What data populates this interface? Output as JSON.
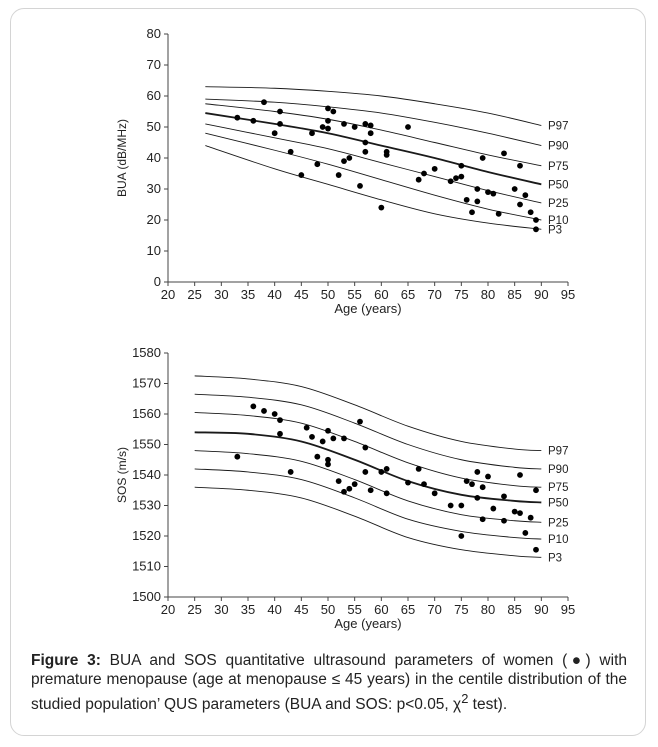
{
  "caption": {
    "label": "Figure 3:",
    "text_a": " BUA and SOS quantitative ultrasound parameters of women (●) with premature menopause (age at menopause ≤ 45 years) in the centile distribution of the studied population’ QUS parameters (BUA and SOS: p<0.05, χ",
    "sup": "2",
    "text_b": " test)."
  },
  "chart_data": [
    {
      "type": "scatter",
      "title": "",
      "xlabel": "Age (years)",
      "ylabel": "BUA (dB/MHz)",
      "xlim": [
        20,
        95
      ],
      "ylim": [
        0,
        80
      ],
      "x_ticks": [
        20,
        25,
        30,
        35,
        40,
        45,
        50,
        55,
        60,
        65,
        70,
        75,
        80,
        85,
        90,
        95
      ],
      "y_ticks": [
        0,
        10,
        20,
        30,
        40,
        50,
        60,
        70,
        80
      ],
      "grid": false,
      "centiles": [
        {
          "name": "P97",
          "points": [
            [
              27,
              63
            ],
            [
              40,
              62.5
            ],
            [
              50,
              61.5
            ],
            [
              60,
              60
            ],
            [
              70,
              57.5
            ],
            [
              80,
              54.5
            ],
            [
              90,
              50.5
            ]
          ]
        },
        {
          "name": "P90",
          "points": [
            [
              27,
              59
            ],
            [
              40,
              58
            ],
            [
              50,
              56.5
            ],
            [
              60,
              54.5
            ],
            [
              70,
              51.5
            ],
            [
              80,
              48
            ],
            [
              90,
              44
            ]
          ]
        },
        {
          "name": "P75",
          "points": [
            [
              27,
              57.5
            ],
            [
              40,
              55
            ],
            [
              50,
              52.5
            ],
            [
              60,
              49
            ],
            [
              70,
              45
            ],
            [
              80,
              41
            ],
            [
              90,
              37.5
            ]
          ]
        },
        {
          "name": "P50",
          "points": [
            [
              27,
              54.5
            ],
            [
              40,
              51
            ],
            [
              50,
              48
            ],
            [
              60,
              44
            ],
            [
              70,
              40
            ],
            [
              80,
              35.5
            ],
            [
              90,
              31.5
            ]
          ]
        },
        {
          "name": "P25",
          "points": [
            [
              27,
              51
            ],
            [
              40,
              46.5
            ],
            [
              50,
              43
            ],
            [
              60,
              38.5
            ],
            [
              70,
              34
            ],
            [
              80,
              29.5
            ],
            [
              90,
              25.5
            ]
          ]
        },
        {
          "name": "P10",
          "points": [
            [
              27,
              48
            ],
            [
              40,
              42.5
            ],
            [
              50,
              38
            ],
            [
              60,
              33
            ],
            [
              70,
              28
            ],
            [
              80,
              23.5
            ],
            [
              90,
              20
            ]
          ]
        },
        {
          "name": "P3",
          "points": [
            [
              27,
              44
            ],
            [
              40,
              36.5
            ],
            [
              50,
              31.5
            ],
            [
              60,
              26.5
            ],
            [
              70,
              22
            ],
            [
              80,
              19
            ],
            [
              90,
              17
            ]
          ]
        }
      ],
      "points": [
        [
          33,
          53
        ],
        [
          36,
          52
        ],
        [
          38,
          58
        ],
        [
          40,
          48
        ],
        [
          41,
          51
        ],
        [
          41,
          55
        ],
        [
          43,
          42
        ],
        [
          45,
          34.5
        ],
        [
          47,
          48
        ],
        [
          48,
          38
        ],
        [
          49,
          50
        ],
        [
          50,
          56
        ],
        [
          50,
          52
        ],
        [
          50,
          49.5
        ],
        [
          51,
          55
        ],
        [
          52,
          34.5
        ],
        [
          53,
          39
        ],
        [
          53,
          51
        ],
        [
          54,
          40
        ],
        [
          55,
          50
        ],
        [
          56,
          31
        ],
        [
          57,
          45
        ],
        [
          57,
          42
        ],
        [
          57,
          51
        ],
        [
          58,
          48
        ],
        [
          58,
          50.5
        ],
        [
          60,
          24
        ],
        [
          61,
          41
        ],
        [
          61,
          42
        ],
        [
          65,
          50
        ],
        [
          67,
          33
        ],
        [
          68,
          35
        ],
        [
          70,
          36.5
        ],
        [
          73,
          32.5
        ],
        [
          74,
          33.5
        ],
        [
          75,
          37.5
        ],
        [
          75,
          34
        ],
        [
          76,
          26.5
        ],
        [
          77,
          22.5
        ],
        [
          78,
          26
        ],
        [
          78,
          30
        ],
        [
          79,
          40
        ],
        [
          80,
          29
        ],
        [
          81,
          28.5
        ],
        [
          82,
          22
        ],
        [
          83,
          41.5
        ],
        [
          85,
          30
        ],
        [
          86,
          25
        ],
        [
          86,
          37.5
        ],
        [
          87,
          28
        ],
        [
          88,
          22.5
        ],
        [
          89,
          17
        ],
        [
          89,
          20
        ]
      ]
    },
    {
      "type": "scatter",
      "title": "",
      "xlabel": "Age (years)",
      "ylabel": "SOS (m/s)",
      "xlim": [
        20,
        95
      ],
      "ylim": [
        1500,
        1580
      ],
      "x_ticks": [
        20,
        25,
        30,
        35,
        40,
        45,
        50,
        55,
        60,
        65,
        70,
        75,
        80,
        85,
        90,
        95
      ],
      "y_ticks": [
        1500,
        1510,
        1520,
        1530,
        1540,
        1550,
        1560,
        1570,
        1580
      ],
      "grid": false,
      "centiles": [
        {
          "name": "P97",
          "points": [
            [
              25,
              1572.5
            ],
            [
              35,
              1571.5
            ],
            [
              45,
              1569
            ],
            [
              55,
              1563
            ],
            [
              65,
              1556
            ],
            [
              75,
              1551
            ],
            [
              85,
              1548.5
            ],
            [
              90,
              1548
            ]
          ]
        },
        {
          "name": "P90",
          "points": [
            [
              25,
              1566.5
            ],
            [
              35,
              1565.5
            ],
            [
              45,
              1563
            ],
            [
              55,
              1557
            ],
            [
              65,
              1550
            ],
            [
              75,
              1545
            ],
            [
              85,
              1542.5
            ],
            [
              90,
              1542
            ]
          ]
        },
        {
          "name": "P75",
          "points": [
            [
              25,
              1560.5
            ],
            [
              35,
              1559.5
            ],
            [
              45,
              1557
            ],
            [
              55,
              1551
            ],
            [
              65,
              1544
            ],
            [
              75,
              1539
            ],
            [
              85,
              1536.5
            ],
            [
              90,
              1536
            ]
          ]
        },
        {
          "name": "P50",
          "points": [
            [
              25,
              1554
            ],
            [
              35,
              1553.5
            ],
            [
              45,
              1551
            ],
            [
              55,
              1545
            ],
            [
              65,
              1538
            ],
            [
              75,
              1533.5
            ],
            [
              85,
              1531.5
            ],
            [
              90,
              1531
            ]
          ]
        },
        {
          "name": "P25",
          "points": [
            [
              25,
              1548
            ],
            [
              35,
              1547
            ],
            [
              45,
              1544.5
            ],
            [
              55,
              1538.5
            ],
            [
              65,
              1531.5
            ],
            [
              75,
              1527
            ],
            [
              85,
              1525
            ],
            [
              90,
              1524.5
            ]
          ]
        },
        {
          "name": "P10",
          "points": [
            [
              25,
              1542
            ],
            [
              35,
              1541
            ],
            [
              45,
              1538.5
            ],
            [
              55,
              1532.5
            ],
            [
              65,
              1525.5
            ],
            [
              75,
              1521.5
            ],
            [
              85,
              1519.5
            ],
            [
              90,
              1519
            ]
          ]
        },
        {
          "name": "P3",
          "points": [
            [
              25,
              1536
            ],
            [
              35,
              1535
            ],
            [
              45,
              1532.5
            ],
            [
              55,
              1526.5
            ],
            [
              65,
              1519.5
            ],
            [
              75,
              1515.5
            ],
            [
              85,
              1513.5
            ],
            [
              90,
              1513
            ]
          ]
        }
      ],
      "points": [
        [
          33,
          1546
        ],
        [
          36,
          1562.5
        ],
        [
          38,
          1561
        ],
        [
          40,
          1560
        ],
        [
          41,
          1558
        ],
        [
          41,
          1553.5
        ],
        [
          43,
          1541
        ],
        [
          46,
          1555.5
        ],
        [
          47,
          1552.5
        ],
        [
          48,
          1546
        ],
        [
          49,
          1551
        ],
        [
          50,
          1554.5
        ],
        [
          50,
          1545
        ],
        [
          50,
          1543.5
        ],
        [
          51,
          1552
        ],
        [
          52,
          1538
        ],
        [
          53,
          1534.5
        ],
        [
          53,
          1552
        ],
        [
          54,
          1535.5
        ],
        [
          55,
          1537
        ],
        [
          56,
          1557.5
        ],
        [
          57,
          1541
        ],
        [
          57,
          1549
        ],
        [
          58,
          1535
        ],
        [
          60,
          1541
        ],
        [
          61,
          1542
        ],
        [
          61,
          1534
        ],
        [
          65,
          1537.5
        ],
        [
          67,
          1542
        ],
        [
          68,
          1537
        ],
        [
          70,
          1534
        ],
        [
          73,
          1530
        ],
        [
          75,
          1520
        ],
        [
          75,
          1530
        ],
        [
          76,
          1538
        ],
        [
          77,
          1537
        ],
        [
          78,
          1541
        ],
        [
          78,
          1532.5
        ],
        [
          79,
          1525.5
        ],
        [
          79,
          1536
        ],
        [
          80,
          1539.5
        ],
        [
          81,
          1529
        ],
        [
          83,
          1533
        ],
        [
          83,
          1525
        ],
        [
          85,
          1528
        ],
        [
          86,
          1527.5
        ],
        [
          86,
          1540
        ],
        [
          87,
          1521
        ],
        [
          88,
          1526
        ],
        [
          89,
          1515.5
        ],
        [
          89,
          1535
        ]
      ]
    }
  ]
}
